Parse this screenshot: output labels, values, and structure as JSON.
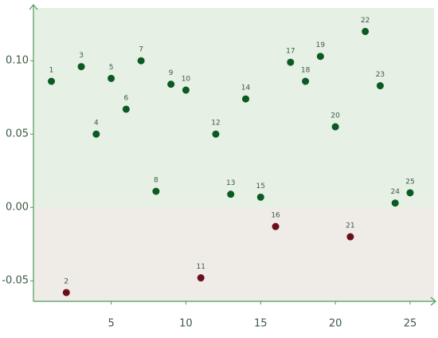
{
  "chart_data": {
    "type": "scatter",
    "x": [
      1,
      2,
      3,
      4,
      5,
      6,
      7,
      8,
      9,
      10,
      11,
      12,
      13,
      14,
      15,
      16,
      17,
      18,
      19,
      20,
      21,
      22,
      23,
      24,
      25
    ],
    "series": [
      {
        "values": [
          0.086,
          -0.058,
          0.096,
          0.05,
          0.088,
          0.067,
          0.1,
          0.011,
          0.084,
          0.08,
          -0.048,
          0.05,
          0.009,
          0.074,
          0.007,
          -0.013,
          0.099,
          0.086,
          0.103,
          0.055,
          -0.02,
          0.12,
          0.083,
          0.003,
          0.01
        ]
      }
    ],
    "positive_color": "#0b5a22",
    "negative_color": "#6b0e1c",
    "positive_background": "#e6f0e5",
    "negative_background": "#efebe6",
    "axis_color": "#4c9a5c",
    "xlim": [
      -0.2,
      26.6
    ],
    "ylim": [
      -0.064,
      0.136
    ],
    "xticks": [
      5,
      10,
      15,
      20,
      25
    ],
    "yticks": [
      {
        "value": -0.05,
        "label": "-0.05"
      },
      {
        "value": 0,
        "label": "0.00"
      },
      {
        "value": 0.05,
        "label": "0.05"
      },
      {
        "value": 0.1,
        "label": "0.10"
      }
    ]
  }
}
